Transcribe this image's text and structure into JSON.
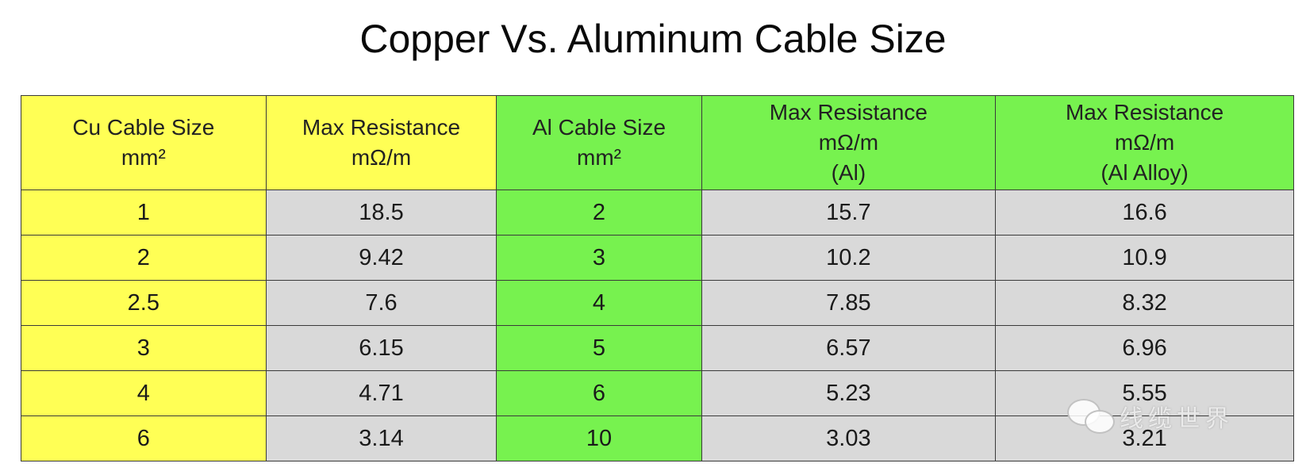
{
  "title": "Copper Vs. Aluminum Cable Size",
  "colors": {
    "copper_header": "#ffff55",
    "aluminum_header": "#77f24f",
    "data_cell": "#d9d9d9"
  },
  "table": {
    "headers": [
      {
        "lines": [
          "Cu Cable Size",
          "mm²"
        ]
      },
      {
        "lines": [
          "Max Resistance",
          "mΩ/m"
        ]
      },
      {
        "lines": [
          "Al Cable Size",
          "mm²"
        ]
      },
      {
        "lines": [
          "Max Resistance",
          "mΩ/m",
          "(Al)"
        ]
      },
      {
        "lines": [
          "Max Resistance",
          "mΩ/m",
          "(Al Alloy)"
        ]
      }
    ],
    "rows": [
      [
        "1",
        "18.5",
        "2",
        "15.7",
        "16.6"
      ],
      [
        "2",
        "9.42",
        "3",
        "10.2",
        "10.9"
      ],
      [
        "2.5",
        "7.6",
        "4",
        "7.85",
        "8.32"
      ],
      [
        "3",
        "6.15",
        "5",
        "6.57",
        "6.96"
      ],
      [
        "4",
        "4.71",
        "6",
        "5.23",
        "5.55"
      ],
      [
        "6",
        "3.14",
        "10",
        "3.03",
        "3.21"
      ]
    ]
  },
  "watermark": {
    "text": "线缆世界",
    "icon": "chat-bubble-icon"
  }
}
